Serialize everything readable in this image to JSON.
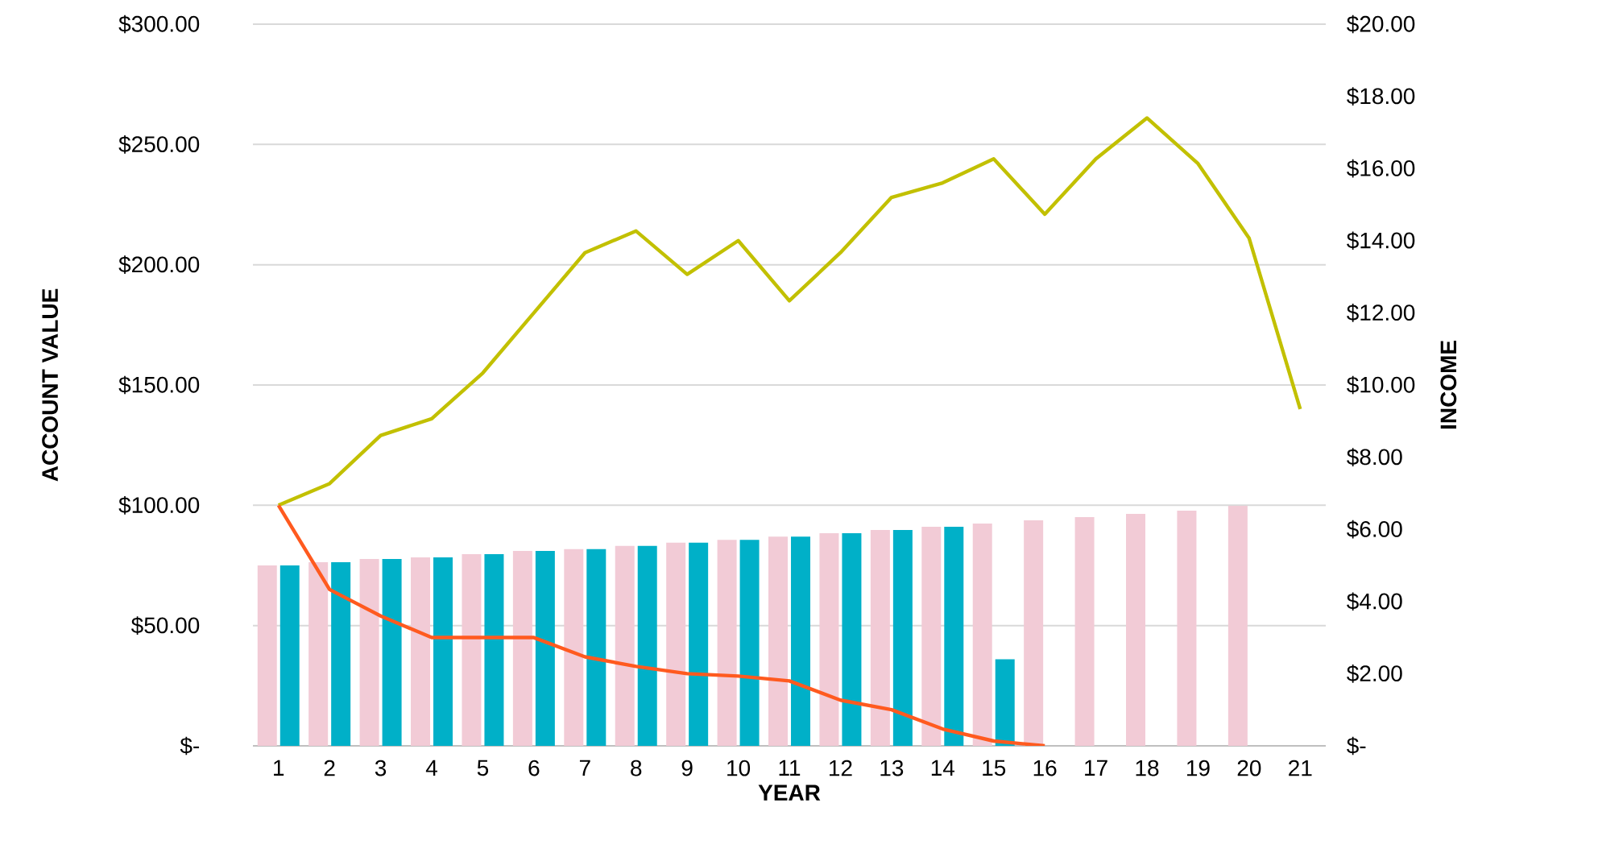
{
  "chart_data": {
    "type": "bar",
    "xlabel": "YEAR",
    "ylabel": "ACCOUNT VALUE",
    "y2label": "INCOME",
    "categories": [
      "1",
      "2",
      "3",
      "4",
      "5",
      "6",
      "7",
      "8",
      "9",
      "10",
      "11",
      "12",
      "13",
      "14",
      "15",
      "16",
      "17",
      "18",
      "19",
      "20",
      "21"
    ],
    "series": [
      {
        "axis": "y2",
        "color": "#f2cbd6",
        "values": [
          5.0,
          5.09,
          5.18,
          5.22,
          5.31,
          5.4,
          5.45,
          5.54,
          5.63,
          5.71,
          5.8,
          5.89,
          5.98,
          6.07,
          6.16,
          6.25,
          6.34,
          6.43,
          6.52,
          6.65,
          null
        ]
      },
      {
        "axis": "y2",
        "color": "#00b0c8",
        "values": [
          5.0,
          5.09,
          5.18,
          5.22,
          5.31,
          5.4,
          5.45,
          5.54,
          5.63,
          5.71,
          5.8,
          5.89,
          5.98,
          6.07,
          2.4,
          null,
          null,
          null,
          null,
          null,
          null
        ]
      },
      {
        "type": "line",
        "axis": "y",
        "color": "#c2c000",
        "values": [
          100,
          109,
          129,
          136,
          155,
          180,
          205,
          214,
          196,
          210,
          185,
          205,
          228,
          234,
          244,
          221,
          244,
          261,
          242,
          211,
          140
        ]
      },
      {
        "type": "line",
        "axis": "y",
        "color": "#ff5a1f",
        "values": [
          100,
          65,
          54,
          45,
          45,
          45,
          37,
          33,
          30,
          29,
          27,
          19,
          15,
          7,
          2,
          0,
          null,
          null,
          null,
          null,
          null
        ]
      }
    ],
    "ylim": [
      0,
      300
    ],
    "yticks": [
      {
        "value": 0,
        "label": "$-"
      },
      {
        "value": 50,
        "label": "$50.00"
      },
      {
        "value": 100,
        "label": "$100.00"
      },
      {
        "value": 150,
        "label": "$150.00"
      },
      {
        "value": 200,
        "label": "$200.00"
      },
      {
        "value": 250,
        "label": "$250.00"
      },
      {
        "value": 300,
        "label": "$300.00"
      }
    ],
    "y2lim": [
      0,
      20
    ],
    "y2ticks": [
      {
        "value": 0,
        "label": "$-"
      },
      {
        "value": 2,
        "label": "$2.00"
      },
      {
        "value": 4,
        "label": "$4.00"
      },
      {
        "value": 6,
        "label": "$6.00"
      },
      {
        "value": 8,
        "label": "$8.00"
      },
      {
        "value": 10,
        "label": "$10.00"
      },
      {
        "value": 12,
        "label": "$12.00"
      },
      {
        "value": 14,
        "label": "$14.00"
      },
      {
        "value": 16,
        "label": "$16.00"
      },
      {
        "value": 18,
        "label": "$18.00"
      },
      {
        "value": 20,
        "label": "$20.00"
      }
    ],
    "grid": "y"
  }
}
